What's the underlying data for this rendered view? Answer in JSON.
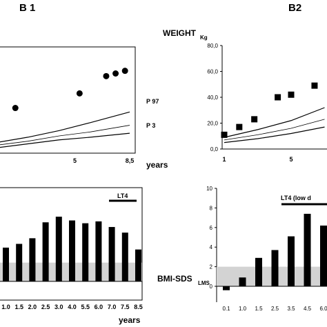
{
  "chart_data": [
    {
      "id": "b1-weight",
      "panel_title": "B 1",
      "type": "scatter",
      "ylabel": "WEIGHT",
      "ylabel_sub": "Kg",
      "xlabel": "years",
      "x_ticks": [
        "5",
        "8,5"
      ],
      "xlim": [
        0,
        8.5
      ],
      "ylim": [
        0,
        80
      ],
      "points": [
        {
          "x": 1.2,
          "y": 34
        },
        {
          "x": 5.3,
          "y": 45
        },
        {
          "x": 7.0,
          "y": 58
        },
        {
          "x": 7.6,
          "y": 60
        },
        {
          "x": 8.2,
          "y": 62
        }
      ],
      "percentile_curves": [
        {
          "name": "P 97",
          "x": [
            0,
            2,
            4,
            6,
            8.5
          ],
          "y": [
            8,
            12,
            17,
            23,
            31
          ]
        },
        {
          "name": "",
          "x": [
            0,
            2,
            4,
            6,
            8.5
          ],
          "y": [
            6,
            9,
            13,
            16,
            21
          ]
        },
        {
          "name": "P 3",
          "x": [
            0,
            2,
            4,
            6,
            8.5
          ],
          "y": [
            4,
            7,
            10,
            12,
            15
          ]
        }
      ]
    },
    {
      "id": "b2-weight",
      "panel_title": "B2",
      "type": "scatter",
      "xlabel": "",
      "y_ticks": [
        "0,0",
        "20,0",
        "40,0",
        "60,0",
        "80,0"
      ],
      "x_ticks": [
        "1",
        "5"
      ],
      "xlim": [
        1,
        7
      ],
      "ylim": [
        0,
        80
      ],
      "points": [
        {
          "x": 1.0,
          "y": 11
        },
        {
          "x": 1.9,
          "y": 17
        },
        {
          "x": 2.8,
          "y": 23
        },
        {
          "x": 4.2,
          "y": 40
        },
        {
          "x": 5.0,
          "y": 42
        },
        {
          "x": 6.4,
          "y": 49
        }
      ],
      "percentile_curves": [
        {
          "name": "",
          "x": [
            1,
            3,
            5,
            7
          ],
          "y": [
            9,
            15,
            22,
            32
          ]
        },
        {
          "name": "",
          "x": [
            1,
            3,
            5,
            7
          ],
          "y": [
            7,
            11,
            16,
            23
          ]
        },
        {
          "name": "",
          "x": [
            1,
            3,
            5,
            7
          ],
          "y": [
            5,
            8,
            12,
            17
          ]
        }
      ]
    },
    {
      "id": "b1-bmi",
      "type": "bar",
      "xlabel": "years",
      "ylabel": "BMI-SDS",
      "ylabel_sub": "LMS",
      "categories": [
        "1.0",
        "1.5",
        "2.0",
        "2.5",
        "3.0",
        "4.0",
        "5.5",
        "6.0",
        "7.0",
        "7.5",
        "8.5"
      ],
      "values": [
        3.6,
        4.0,
        4.6,
        6.3,
        6.9,
        6.5,
        6.2,
        6.4,
        5.8,
        5.2,
        3.4
      ],
      "ylim": [
        -2,
        10
      ],
      "reference_band": [
        0,
        2
      ],
      "annotation": {
        "text": "LT4"
      }
    },
    {
      "id": "b2-bmi",
      "type": "bar",
      "xlabel": "",
      "y_ticks": [
        "0",
        "2",
        "4",
        "6",
        "8",
        "10"
      ],
      "categories": [
        "0.1",
        "1.0",
        "1.5",
        "2.5",
        "3.5",
        "4.5",
        "6.0"
      ],
      "values": [
        -0.4,
        0.9,
        2.9,
        3.7,
        5.1,
        7.4,
        6.2
      ],
      "ylim": [
        -1,
        10
      ],
      "reference_band": [
        0,
        2
      ],
      "annotation": {
        "text": "LT4 (low d"
      }
    }
  ]
}
